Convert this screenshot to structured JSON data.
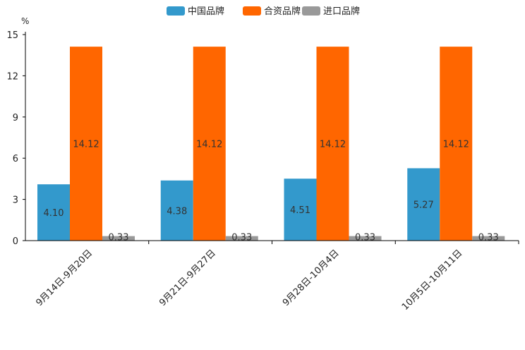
{
  "chart_data": {
    "type": "bar",
    "title": "",
    "ylabel": "%",
    "xlabel": "",
    "ylim": [
      0,
      15
    ],
    "yticks": [
      0,
      3,
      6,
      9,
      12,
      15
    ],
    "categories": [
      "9月14日-9月20日",
      "9月21日-9月27日",
      "9月28日-10月4日",
      "10月5日-10月11日"
    ],
    "legend_position": "top-center",
    "series": [
      {
        "name": "中国品牌",
        "color": "#3399cc",
        "values": [
          4.1,
          4.38,
          4.51,
          5.27
        ],
        "labels": [
          "4.10",
          "4.38",
          "4.51",
          "5.27"
        ]
      },
      {
        "name": "合资品牌",
        "color": "#ff6600",
        "values": [
          14.12,
          14.12,
          14.12,
          14.12
        ],
        "labels": [
          "14.12",
          "14.12",
          "14.12",
          "14.12"
        ]
      },
      {
        "name": "进口品牌",
        "color": "#999999",
        "values": [
          0.33,
          0.33,
          0.33,
          0.33
        ],
        "labels": [
          "0.33",
          "0.33",
          "0.33",
          "0.33"
        ]
      }
    ]
  }
}
